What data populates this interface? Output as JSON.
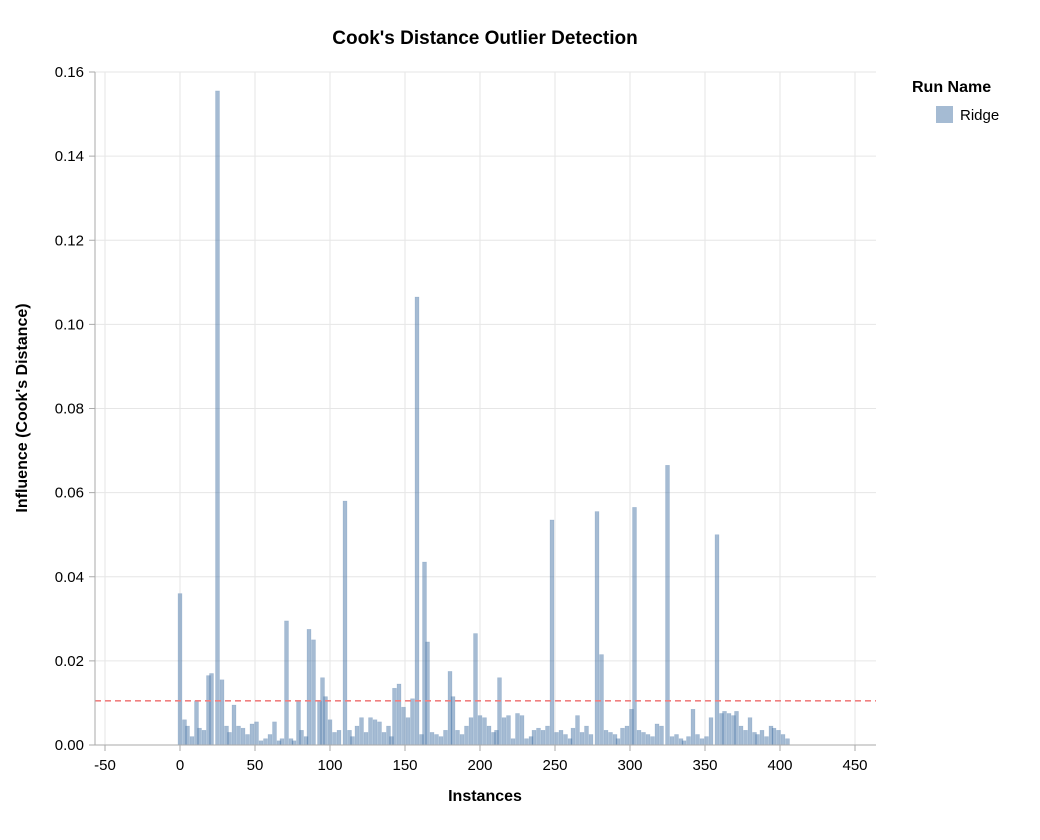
{
  "title": "Cook's Distance Outlier Detection",
  "legend": {
    "title": "Run Name",
    "entries": [
      {
        "label": "Ridge",
        "color": "#4c78a8",
        "opacity": 0.5
      }
    ]
  },
  "colors": {
    "bar": "#4c78a8",
    "bar_opacity": 0.5,
    "threshold": "#f08080",
    "axis": "#aaaaaa",
    "grid": "#e6e6e6"
  },
  "chart_data": {
    "type": "bar",
    "title": "Cook's Distance Outlier Detection",
    "xlabel": "Instances",
    "ylabel": "Influence (Cook's Distance)",
    "xlim": [
      -50,
      450
    ],
    "ylim": [
      0,
      0.16
    ],
    "x_ticks": [
      -50,
      0,
      50,
      100,
      150,
      200,
      250,
      300,
      350,
      400,
      450
    ],
    "y_ticks": [
      0.0,
      0.02,
      0.04,
      0.06,
      0.08,
      0.1,
      0.12,
      0.14,
      0.16
    ],
    "grid": true,
    "legend_position": "top-right",
    "threshold_line": {
      "y": 0.0105,
      "style": "dashed",
      "color": "#f08080"
    },
    "series": [
      {
        "name": "Ridge",
        "points": [
          [
            0,
            0.036
          ],
          [
            3,
            0.006
          ],
          [
            5,
            0.0045
          ],
          [
            8,
            0.002
          ],
          [
            11,
            0.0105
          ],
          [
            13,
            0.004
          ],
          [
            16,
            0.0035
          ],
          [
            19,
            0.0165
          ],
          [
            21,
            0.017
          ],
          [
            25,
            0.1555
          ],
          [
            28,
            0.0155
          ],
          [
            31,
            0.0045
          ],
          [
            33,
            0.003
          ],
          [
            36,
            0.0095
          ],
          [
            39,
            0.0045
          ],
          [
            42,
            0.004
          ],
          [
            45,
            0.0025
          ],
          [
            48,
            0.005
          ],
          [
            51,
            0.0055
          ],
          [
            54,
            0.001
          ],
          [
            57,
            0.0015
          ],
          [
            60,
            0.0025
          ],
          [
            63,
            0.0055
          ],
          [
            66,
            0.001
          ],
          [
            68,
            0.0015
          ],
          [
            71,
            0.0295
          ],
          [
            74,
            0.0015
          ],
          [
            76,
            0.001
          ],
          [
            79,
            0.0105
          ],
          [
            81,
            0.0035
          ],
          [
            84,
            0.002
          ],
          [
            86,
            0.0275
          ],
          [
            89,
            0.025
          ],
          [
            93,
            0.0105
          ],
          [
            95,
            0.016
          ],
          [
            97,
            0.0115
          ],
          [
            100,
            0.006
          ],
          [
            103,
            0.003
          ],
          [
            106,
            0.0035
          ],
          [
            110,
            0.058
          ],
          [
            113,
            0.0035
          ],
          [
            115,
            0.002
          ],
          [
            118,
            0.0045
          ],
          [
            121,
            0.0065
          ],
          [
            124,
            0.003
          ],
          [
            127,
            0.0065
          ],
          [
            130,
            0.006
          ],
          [
            133,
            0.0055
          ],
          [
            136,
            0.003
          ],
          [
            139,
            0.0045
          ],
          [
            141,
            0.002
          ],
          [
            143,
            0.0135
          ],
          [
            146,
            0.0145
          ],
          [
            149,
            0.009
          ],
          [
            152,
            0.0065
          ],
          [
            155,
            0.011
          ],
          [
            158,
            0.1065
          ],
          [
            161,
            0.0025
          ],
          [
            163,
            0.0435
          ],
          [
            165,
            0.0245
          ],
          [
            168,
            0.003
          ],
          [
            171,
            0.0025
          ],
          [
            174,
            0.002
          ],
          [
            177,
            0.0035
          ],
          [
            180,
            0.0175
          ],
          [
            182,
            0.0115
          ],
          [
            185,
            0.0035
          ],
          [
            188,
            0.0025
          ],
          [
            191,
            0.0045
          ],
          [
            194,
            0.0065
          ],
          [
            197,
            0.0265
          ],
          [
            200,
            0.007
          ],
          [
            203,
            0.0065
          ],
          [
            206,
            0.0045
          ],
          [
            209,
            0.003
          ],
          [
            211,
            0.0035
          ],
          [
            213,
            0.016
          ],
          [
            216,
            0.0065
          ],
          [
            219,
            0.007
          ],
          [
            222,
            0.0015
          ],
          [
            225,
            0.0075
          ],
          [
            228,
            0.007
          ],
          [
            231,
            0.0015
          ],
          [
            234,
            0.002
          ],
          [
            236,
            0.0035
          ],
          [
            239,
            0.004
          ],
          [
            242,
            0.0035
          ],
          [
            245,
            0.0045
          ],
          [
            248,
            0.0535
          ],
          [
            251,
            0.003
          ],
          [
            254,
            0.0035
          ],
          [
            257,
            0.0025
          ],
          [
            260,
            0.0015
          ],
          [
            262,
            0.004
          ],
          [
            265,
            0.007
          ],
          [
            268,
            0.003
          ],
          [
            271,
            0.0045
          ],
          [
            274,
            0.0025
          ],
          [
            278,
            0.0555
          ],
          [
            281,
            0.0215
          ],
          [
            284,
            0.0035
          ],
          [
            287,
            0.003
          ],
          [
            290,
            0.0025
          ],
          [
            292,
            0.0015
          ],
          [
            295,
            0.004
          ],
          [
            298,
            0.0045
          ],
          [
            301,
            0.0085
          ],
          [
            303,
            0.0565
          ],
          [
            306,
            0.0035
          ],
          [
            309,
            0.003
          ],
          [
            312,
            0.0025
          ],
          [
            315,
            0.002
          ],
          [
            318,
            0.005
          ],
          [
            321,
            0.0045
          ],
          [
            325,
            0.0665
          ],
          [
            328,
            0.002
          ],
          [
            331,
            0.0025
          ],
          [
            334,
            0.0015
          ],
          [
            336,
            0.001
          ],
          [
            339,
            0.002
          ],
          [
            342,
            0.0085
          ],
          [
            345,
            0.0025
          ],
          [
            348,
            0.0015
          ],
          [
            351,
            0.002
          ],
          [
            354,
            0.0065
          ],
          [
            358,
            0.05
          ],
          [
            361,
            0.0075
          ],
          [
            363,
            0.008
          ],
          [
            366,
            0.0075
          ],
          [
            369,
            0.007
          ],
          [
            371,
            0.008
          ],
          [
            374,
            0.0045
          ],
          [
            377,
            0.0035
          ],
          [
            380,
            0.0065
          ],
          [
            383,
            0.003
          ],
          [
            385,
            0.0025
          ],
          [
            388,
            0.0035
          ],
          [
            391,
            0.002
          ],
          [
            394,
            0.0045
          ],
          [
            396,
            0.004
          ],
          [
            399,
            0.0035
          ],
          [
            402,
            0.0025
          ],
          [
            405,
            0.0015
          ]
        ]
      }
    ]
  }
}
